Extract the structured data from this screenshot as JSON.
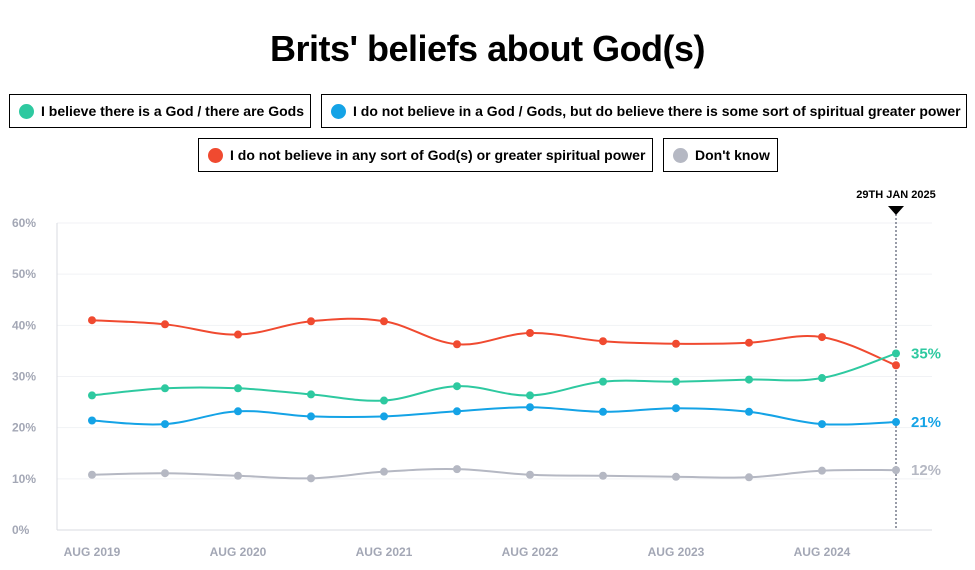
{
  "chart_data": {
    "type": "line",
    "title": "Brits' beliefs about God(s)",
    "marker_label": "29TH JAN 2025",
    "ylim": [
      0,
      60
    ],
    "yticks": [
      "0%",
      "10%",
      "20%",
      "30%",
      "40%",
      "50%",
      "60%"
    ],
    "xtick_labels": [
      "AUG 2019",
      "AUG 2020",
      "AUG 2021",
      "AUG 2022",
      "AUG 2023",
      "AUG 2024"
    ],
    "x": [
      "Aug 2019",
      "Feb 2020",
      "Aug 2020",
      "Feb 2021",
      "Aug 2021",
      "Feb 2022",
      "Aug 2022",
      "Feb 2023",
      "Aug 2023",
      "Feb 2024",
      "Aug 2024",
      "Jan 2025"
    ],
    "series": [
      {
        "name": "I do not believe in any sort of God(s) or greater spiritual power",
        "color": "#f04a30",
        "values": [
          41,
          40.2,
          38.2,
          40.8,
          40.8,
          36.3,
          38.5,
          36.9,
          36.4,
          36.6,
          37.7,
          32.2
        ],
        "end_label": ""
      },
      {
        "name": "I believe there is a God / there are Gods",
        "color": "#2ec9a0",
        "values": [
          26.3,
          27.7,
          27.7,
          26.5,
          25.3,
          28.1,
          26.3,
          29.0,
          29.0,
          29.4,
          29.7,
          34.5
        ],
        "end_label": "35%"
      },
      {
        "name": "I do not believe in a God / Gods, but do believe there is some sort of spiritual greater power",
        "color": "#14a3e6",
        "values": [
          21.4,
          20.7,
          23.2,
          22.2,
          22.2,
          23.2,
          24.0,
          23.1,
          23.8,
          23.1,
          20.7,
          21.1
        ],
        "end_label": "21%"
      },
      {
        "name": "Don't know",
        "color": "#b5b8c3",
        "values": [
          10.8,
          11.1,
          10.6,
          10.1,
          11.4,
          11.9,
          10.8,
          10.6,
          10.4,
          10.3,
          11.6,
          11.7
        ],
        "end_label": "12%"
      }
    ]
  },
  "legend": [
    {
      "label": "I believe there is a God / there are Gods",
      "color": "#2ec9a0"
    },
    {
      "label": "I do not believe in a God / Gods, but do believe there is some sort of spiritual greater power",
      "color": "#14a3e6"
    },
    {
      "label": "I do not believe in any sort of God(s) or greater spiritual power",
      "color": "#f04a30"
    },
    {
      "label": "Don't know",
      "color": "#b5b8c3"
    }
  ]
}
